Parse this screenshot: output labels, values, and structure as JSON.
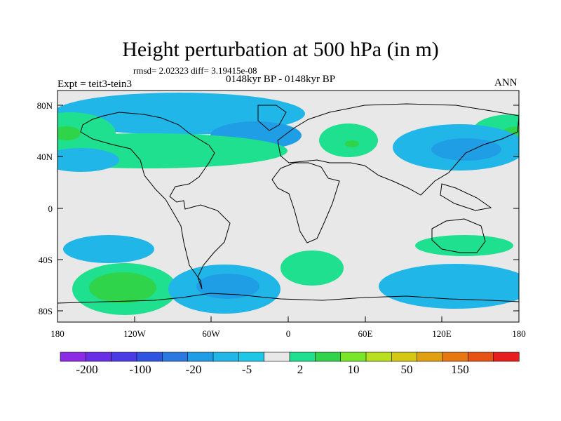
{
  "title": "Height perturbation at 500 hPa (in m)",
  "stats": "rmsd= 2.02323 diff= 3.19415e-08",
  "period": "0148kyr BP - 0148kyr BP",
  "expt": "Expt = teit3-tein3",
  "season": "ANN",
  "chart_data": {
    "type": "heatmap",
    "variable": "500 hPa geopotential height perturbation",
    "units": "m",
    "lat_ticks": [
      "80N",
      "40N",
      "0",
      "40S",
      "80S"
    ],
    "lon_ticks": [
      "180",
      "120W",
      "60W",
      "0",
      "60E",
      "120E",
      "180"
    ],
    "lat_range": [
      -90,
      90
    ],
    "lon_range": [
      -180,
      180
    ],
    "colorbar": {
      "labels": [
        "-200",
        "-100",
        "-20",
        "-5",
        "2",
        "10",
        "50",
        "150"
      ],
      "colors": [
        "#8b2be6",
        "#6a2ee6",
        "#4a3be6",
        "#2f55e0",
        "#2a78e0",
        "#1f9ee6",
        "#21b6e8",
        "#1fc7e6",
        "#e8e8e8",
        "#1fe08f",
        "#2fd44a",
        "#7ae62a",
        "#b8e01f",
        "#d4c814",
        "#e0a010",
        "#e6780f",
        "#e65314",
        "#e61e1e"
      ]
    },
    "regions": [
      {
        "lon": -50,
        "lat": 58,
        "sign": "negative",
        "level": "-5 to -20"
      },
      {
        "lon": 138,
        "lat": 42,
        "sign": "negative",
        "level": "-5 to -20"
      },
      {
        "lon": -30,
        "lat": -62,
        "sign": "negative",
        "level": "-5 to -20"
      },
      {
        "lon": -145,
        "lat": -28,
        "sign": "negative",
        "level": "-2 to -5"
      },
      {
        "lon": 150,
        "lat": -60,
        "sign": "negative",
        "level": "-2 to -5"
      },
      {
        "lon": -110,
        "lat": -62,
        "sign": "positive",
        "level": "2 to 10"
      },
      {
        "lon": -150,
        "lat": 60,
        "sign": "positive",
        "level": "2 to 10"
      },
      {
        "lon": -100,
        "lat": 42,
        "sign": "positive",
        "level": "2 to 10"
      },
      {
        "lon": 48,
        "lat": 48,
        "sign": "positive",
        "level": "2 to 10"
      },
      {
        "lon": 25,
        "lat": -45,
        "sign": "positive",
        "level": "2 to 10"
      },
      {
        "lon": 130,
        "lat": -28,
        "sign": "positive",
        "level": "2 to 10"
      }
    ]
  }
}
